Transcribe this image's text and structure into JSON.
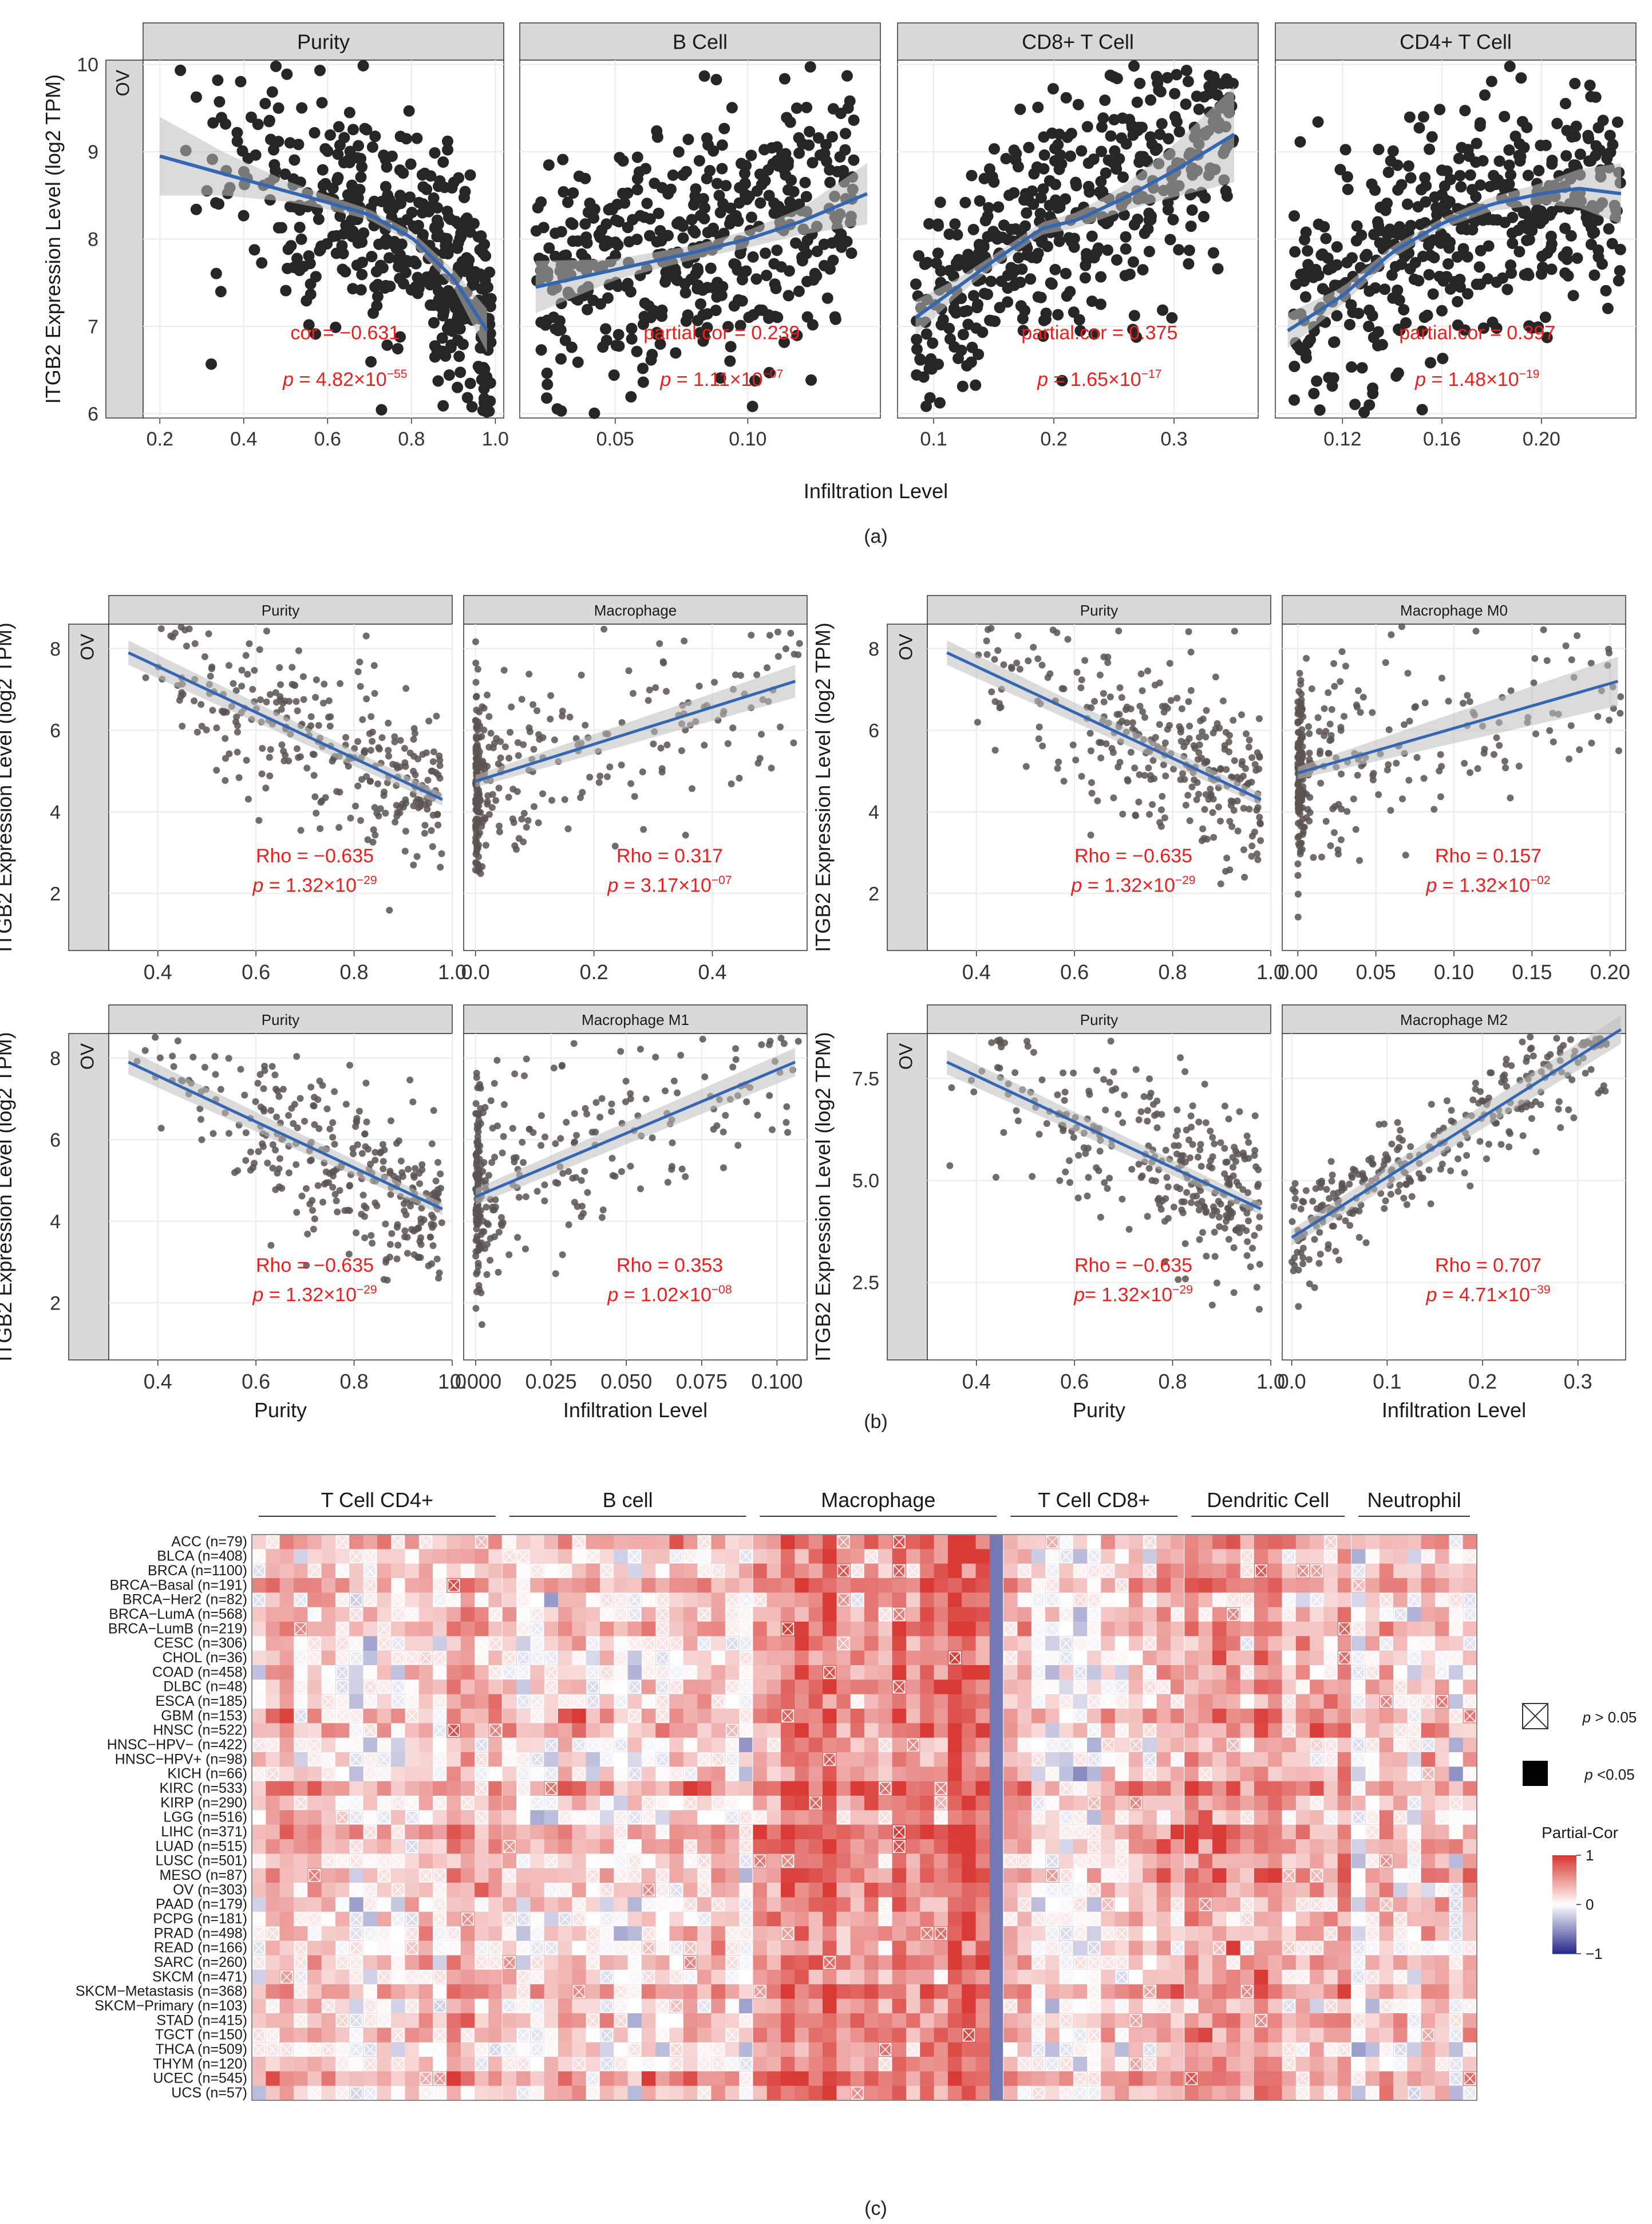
{
  "colors": {
    "points_a": "#262626",
    "points_b": "#5a5350",
    "fit_line": "#3366b3",
    "ci_band": "#bdbdbd",
    "annotation": "#e8211e",
    "strip_bg": "#d9d9d9",
    "grid": "#ebebeb",
    "heat_pos": "#d93a35",
    "heat_neg": "#2b2f8f",
    "heat_mid": "#ffffff"
  },
  "panel_a": {
    "caption": "(a)",
    "row_label": "OV",
    "ylabel": "ITGB2 Expression Level (log2 TPM)",
    "xlabel": "Infiltration Level",
    "yticks": [
      "6",
      "7",
      "8",
      "9",
      "10"
    ],
    "ylim": [
      5.95,
      10.05
    ],
    "facets": [
      {
        "title": "Purity",
        "xlim": [
          0.16,
          1.02
        ],
        "xticks": [
          0.2,
          0.4,
          0.6,
          0.8,
          1.0
        ],
        "xtick_labels": [
          "0.2",
          "0.4",
          "0.6",
          "0.8",
          "1.0"
        ],
        "fit_x": [
          0.2,
          0.35,
          0.5,
          0.6,
          0.7,
          0.8,
          0.9,
          0.98
        ],
        "fit_y": [
          8.95,
          8.75,
          8.55,
          8.42,
          8.28,
          8.02,
          7.55,
          6.95
        ],
        "ci_half": [
          0.45,
          0.25,
          0.12,
          0.08,
          0.06,
          0.07,
          0.1,
          0.25
        ],
        "n_points": 450,
        "point_x_range": [
          0.22,
          0.99
        ],
        "point_spread": 0.85,
        "label1": "cor = −0.631",
        "label2_base": "p = 4.82×10",
        "label2_exp": "−55"
      },
      {
        "title": "B Cell",
        "xlim": [
          0.014,
          0.15
        ],
        "xticks": [
          0.05,
          0.1
        ],
        "xtick_labels": [
          "0.05",
          "0.10"
        ],
        "fit_x": [
          0.02,
          0.05,
          0.08,
          0.1,
          0.12,
          0.145
        ],
        "fit_y": [
          7.45,
          7.65,
          7.85,
          8.0,
          8.2,
          8.52
        ],
        "ci_half": [
          0.3,
          0.12,
          0.08,
          0.1,
          0.15,
          0.35
        ],
        "n_points": 450,
        "point_x_range": [
          0.02,
          0.14
        ],
        "point_spread": 0.95,
        "label1": "partial.cor = 0.239",
        "label2_base": "p = 1.11×10",
        "label2_exp": "−07"
      },
      {
        "title": "CD8+ T Cell",
        "xlim": [
          0.07,
          0.37
        ],
        "xticks": [
          0.1,
          0.2,
          0.3
        ],
        "xtick_labels": [
          "0.1",
          "0.2",
          "0.3"
        ],
        "fit_x": [
          0.085,
          0.12,
          0.15,
          0.19,
          0.22,
          0.26,
          0.3,
          0.35
        ],
        "fit_y": [
          7.1,
          7.45,
          7.75,
          8.12,
          8.22,
          8.48,
          8.78,
          9.2
        ],
        "ci_half": [
          0.2,
          0.1,
          0.07,
          0.07,
          0.09,
          0.15,
          0.3,
          0.55
        ],
        "n_points": 450,
        "point_x_range": [
          0.085,
          0.35
        ],
        "point_spread": 0.85,
        "label1": "partial.cor = 0.375",
        "label2_base": "p = 1.65×10",
        "label2_exp": "−17"
      },
      {
        "title": "CD4+ T Cell",
        "xlim": [
          0.093,
          0.238
        ],
        "xticks": [
          0.12,
          0.16,
          0.2
        ],
        "xtick_labels": [
          "0.12",
          "0.16",
          "0.20"
        ],
        "fit_x": [
          0.098,
          0.12,
          0.14,
          0.16,
          0.18,
          0.2,
          0.215,
          0.232
        ],
        "fit_y": [
          6.95,
          7.35,
          7.85,
          8.18,
          8.4,
          8.52,
          8.58,
          8.52
        ],
        "ci_half": [
          0.2,
          0.1,
          0.07,
          0.06,
          0.08,
          0.12,
          0.22,
          0.35
        ],
        "n_points": 450,
        "point_x_range": [
          0.1,
          0.232
        ],
        "point_spread": 0.85,
        "label1": "partial.cor = 0.397",
        "label2_base": "p = 1.48×10",
        "label2_exp": "−19"
      }
    ]
  },
  "panel_b": {
    "caption": "(b)",
    "row_label": "OV",
    "ylabel": "ITGB2 Expression Level (log2 TPM)",
    "plots": [
      {
        "yticks": [
          "2",
          "4",
          "6",
          "8"
        ],
        "ytick_values": [
          2,
          4,
          6,
          8
        ],
        "ylim": [
          0.6,
          8.6
        ],
        "facets": [
          {
            "title": "Purity",
            "xlim": [
              0.3,
              1.0
            ],
            "xticks": [
              0.4,
              0.6,
              0.8,
              1.0
            ],
            "xtick_labels": [
              "0.4",
              "0.6",
              "0.8",
              "1.0"
            ],
            "fit_x": [
              0.34,
              0.98
            ],
            "fit_y": [
              7.9,
              4.3
            ],
            "ci_half": [
              0.3,
              0.15
            ],
            "kind": "purity",
            "n_points": 300,
            "label1": "Rho = −0.635",
            "label2_base": "p = 1.32×10",
            "label2_exp": "−29"
          },
          {
            "title": "Macrophage",
            "xlim": [
              -0.02,
              0.56
            ],
            "xticks": [
              0.0,
              0.2,
              0.4
            ],
            "xtick_labels": [
              "0.0",
              "0.2",
              "0.4"
            ],
            "fit_x": [
              0.0,
              0.54
            ],
            "fit_y": [
              4.75,
              7.2
            ],
            "ci_half": [
              0.15,
              0.4
            ],
            "kind": "skew",
            "n_points": 300,
            "label1": "Rho = 0.317",
            "label2_base": "p = 3.17×10",
            "label2_exp": "−07"
          }
        ]
      },
      {
        "yticks": [
          "2",
          "4",
          "6",
          "8"
        ],
        "ytick_values": [
          2,
          4,
          6,
          8
        ],
        "ylim": [
          0.6,
          8.6
        ],
        "facets": [
          {
            "title": "Purity",
            "xlim": [
              0.3,
              1.0
            ],
            "xticks": [
              0.4,
              0.6,
              0.8,
              1.0
            ],
            "xtick_labels": [
              "0.4",
              "0.6",
              "0.8",
              "1.0"
            ],
            "fit_x": [
              0.34,
              0.98
            ],
            "fit_y": [
              7.9,
              4.3
            ],
            "ci_half": [
              0.3,
              0.15
            ],
            "kind": "purity",
            "n_points": 300,
            "label1": "Rho = −0.635",
            "label2_base": "p = 1.32×10",
            "label2_exp": "−29"
          },
          {
            "title": "Macrophage M0",
            "xlim": [
              -0.01,
              0.21
            ],
            "xticks": [
              0.0,
              0.05,
              0.1,
              0.15,
              0.2
            ],
            "xtick_labels": [
              "0.00",
              "0.05",
              "0.10",
              "0.15",
              "0.20"
            ],
            "fit_x": [
              0.0,
              0.205
            ],
            "fit_y": [
              4.95,
              7.2
            ],
            "ci_half": [
              0.15,
              0.6
            ],
            "kind": "skew",
            "n_points": 300,
            "label1": "Rho = 0.157",
            "label2_base": "p = 1.32×10",
            "label2_exp": "−02"
          }
        ]
      },
      {
        "yticks": [
          "2",
          "4",
          "6",
          "8"
        ],
        "ytick_values": [
          2,
          4,
          6,
          8
        ],
        "ylim": [
          0.6,
          8.6
        ],
        "facets": [
          {
            "title": "Purity",
            "xlim": [
              0.3,
              1.0
            ],
            "xticks": [
              0.4,
              0.6,
              0.8,
              1.0
            ],
            "xtick_labels": [
              "0.4",
              "0.6",
              "0.8",
              "1.0"
            ],
            "fit_x": [
              0.34,
              0.98
            ],
            "fit_y": [
              7.9,
              4.3
            ],
            "ci_half": [
              0.3,
              0.15
            ],
            "kind": "purity",
            "n_points": 300,
            "label1": "Rho = −0.635",
            "label2_base": "p = 1.32×10",
            "label2_exp": "−29"
          },
          {
            "title": "Macrophage M1",
            "xlim": [
              -0.004,
              0.11
            ],
            "xticks": [
              0.0,
              0.025,
              0.05,
              0.075,
              0.1
            ],
            "xtick_labels": [
              "0.000",
              "0.025",
              "0.050",
              "0.075",
              "0.100"
            ],
            "fit_x": [
              0.0,
              0.106
            ],
            "fit_y": [
              4.6,
              7.9
            ],
            "ci_half": [
              0.2,
              0.35
            ],
            "kind": "skew",
            "n_points": 300,
            "label1": "Rho = 0.353",
            "label2_base": "p = 1.02×10",
            "label2_exp": "−08"
          }
        ]
      },
      {
        "yticks": [
          "2.5",
          "5.0",
          "7.5"
        ],
        "ytick_values": [
          2.5,
          5.0,
          7.5
        ],
        "ylim": [
          0.6,
          8.6
        ],
        "facets": [
          {
            "title": "Purity",
            "xlim": [
              0.3,
              1.0
            ],
            "xticks": [
              0.4,
              0.6,
              0.8,
              1.0
            ],
            "xtick_labels": [
              "0.4",
              "0.6",
              "0.8",
              "1.0"
            ],
            "fit_x": [
              0.34,
              0.98
            ],
            "fit_y": [
              7.9,
              4.3
            ],
            "ci_half": [
              0.3,
              0.15
            ],
            "kind": "purity",
            "n_points": 300,
            "label1": "Rho = −0.635",
            "label2_base": "p= 1.32×10",
            "label2_exp": "−29"
          },
          {
            "title": "Macrophage M2",
            "xlim": [
              -0.01,
              0.35
            ],
            "xticks": [
              0.0,
              0.1,
              0.2,
              0.3
            ],
            "xtick_labels": [
              "0.0",
              "0.1",
              "0.2",
              "0.3"
            ],
            "fit_x": [
              0.0,
              0.345
            ],
            "fit_y": [
              3.6,
              8.7
            ],
            "ci_half": [
              0.2,
              0.35
            ],
            "kind": "linear",
            "n_points": 300,
            "label1": "Rho = 0.707",
            "label2_base": "p = 4.71×10",
            "label2_exp": "−39"
          }
        ]
      }
    ],
    "xlabels": [
      "Purity",
      "Infiltration Level",
      "Purity",
      "Infiltration Level"
    ]
  },
  "panel_c": {
    "caption": "(c)",
    "groups": [
      {
        "name": "T Cell CD4+",
        "n_cols": 18
      },
      {
        "name": "B cell",
        "n_cols": 18
      },
      {
        "name": "Macrophage",
        "n_cols": 18
      },
      {
        "name": "T Cell CD8+",
        "n_cols": 13
      },
      {
        "name": "Dendritic Cell",
        "n_cols": 12
      },
      {
        "name": "Neutrophil",
        "n_cols": 9
      }
    ],
    "rows": [
      "ACC (n=79)",
      "BLCA (n=408)",
      "BRCA (n=1100)",
      "BRCA−Basal (n=191)",
      "BRCA−Her2 (n=82)",
      "BRCA−LumA (n=568)",
      "BRCA−LumB (n=219)",
      "CESC (n=306)",
      "CHOL (n=36)",
      "COAD (n=458)",
      "DLBC (n=48)",
      "ESCA (n=185)",
      "GBM (n=153)",
      "HNSC (n=522)",
      "HNSC−HPV− (n=422)",
      "HNSC−HPV+ (n=98)",
      "KICH (n=66)",
      "KIRC (n=533)",
      "KIRP (n=290)",
      "LGG (n=516)",
      "LIHC (n=371)",
      "LUAD (n=515)",
      "LUSC (n=501)",
      "MESO (n=87)",
      "OV (n=303)",
      "PAAD (n=179)",
      "PCPG (n=181)",
      "PRAD (n=498)",
      "READ (n=166)",
      "SARC (n=260)",
      "SKCM (n=471)",
      "SKCM−Metastasis (n=368)",
      "SKCM−Primary (n=103)",
      "STAD (n=415)",
      "TGCT (n=150)",
      "THCA (n=509)",
      "THYM (n=120)",
      "UCEC (n=545)",
      "UCS (n=57)"
    ],
    "group_bias": [
      0.35,
      0.3,
      0.7,
      0.3,
      0.5,
      0.25
    ],
    "legend": {
      "ns_label_italic": "p",
      "ns_label_rest": " > 0.05",
      "sig_label_italic": "p",
      "sig_label_rest": " <0.05",
      "title": "Partial-Cor",
      "ticks": [
        "1",
        "0",
        "−1"
      ],
      "tick_values": [
        1,
        0,
        -1
      ]
    }
  }
}
